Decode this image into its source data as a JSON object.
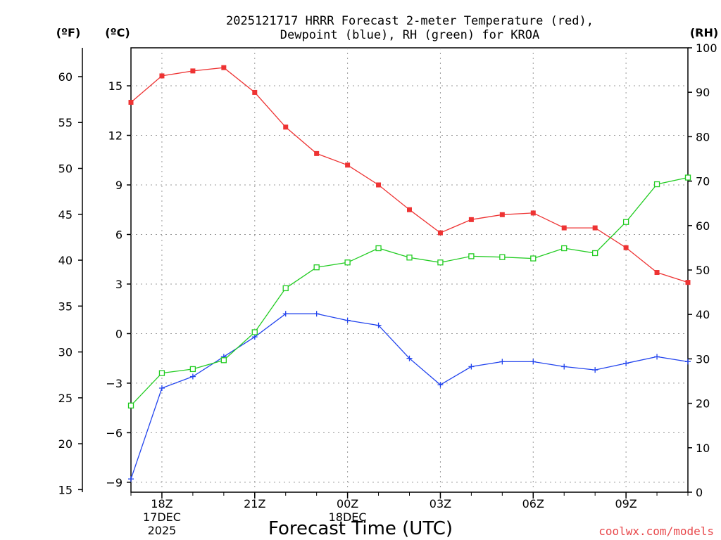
{
  "chart_data": {
    "type": "line",
    "title_line1": "2025121717 HRRR Forecast 2-meter Temperature (red),",
    "title_line2": "Dewpoint (blue), RH (green) for KROA",
    "axis_units": {
      "fahrenheit": "(ºF)",
      "celsius": "(ºC)",
      "rh": "(RH)"
    },
    "xlabel": "Forecast Time (UTC)",
    "credit": "coolwx.com/models",
    "x_hours": [
      17,
      18,
      19,
      20,
      21,
      22,
      23,
      24,
      25,
      26,
      27,
      28,
      29,
      30,
      31,
      32,
      33,
      34,
      35
    ],
    "x_range": [
      17,
      35
    ],
    "x_ticks": [
      {
        "hour": 18,
        "labels": [
          "18Z",
          "17DEC",
          "2025"
        ]
      },
      {
        "hour": 21,
        "labels": [
          "21Z"
        ]
      },
      {
        "hour": 24,
        "labels": [
          "00Z",
          "18DEC"
        ]
      },
      {
        "hour": 27,
        "labels": [
          "03Z"
        ]
      },
      {
        "hour": 30,
        "labels": [
          "06Z"
        ]
      },
      {
        "hour": 33,
        "labels": [
          "09Z"
        ]
      }
    ],
    "celsius_range": [
      -9.6,
      17.3
    ],
    "celsius_ticks": [
      "15",
      "12",
      "9",
      "6",
      "3",
      "0",
      "−3",
      "−6",
      "−9"
    ],
    "celsius_tick_values": [
      15,
      12,
      9,
      6,
      3,
      0,
      -3,
      -6,
      -9
    ],
    "fahrenheit_ticks": [
      "60",
      "55",
      "50",
      "45",
      "40",
      "35",
      "30",
      "25",
      "20",
      "15"
    ],
    "fahrenheit_tick_values": [
      60,
      55,
      50,
      45,
      40,
      35,
      30,
      25,
      20,
      15
    ],
    "rh_range": [
      0,
      100
    ],
    "rh_ticks": [
      "100",
      "90",
      "80",
      "70",
      "60",
      "50",
      "40",
      "30",
      "20",
      "10",
      "0"
    ],
    "rh_tick_values": [
      100,
      90,
      80,
      70,
      60,
      50,
      40,
      30,
      20,
      10,
      0
    ],
    "series": [
      {
        "name": "2-meter Temperature",
        "unit": "C",
        "color": "#ee3333",
        "marker": "filled-square",
        "values": [
          14.0,
          15.6,
          15.9,
          16.1,
          14.6,
          12.5,
          10.9,
          10.2,
          9.0,
          7.5,
          6.1,
          6.9,
          7.2,
          7.3,
          6.4,
          6.4,
          5.2,
          3.7,
          3.1
        ]
      },
      {
        "name": "Dewpoint",
        "unit": "C",
        "color": "#2244ee",
        "marker": "plus",
        "values": [
          -8.8,
          -3.3,
          -2.6,
          -1.4,
          -0.2,
          1.2,
          1.2,
          0.8,
          0.5,
          -1.5,
          -3.1,
          -2.0,
          -1.7,
          -1.7,
          -2.0,
          -2.2,
          -1.8,
          -1.4,
          -1.7
        ]
      },
      {
        "name": "RH",
        "unit": "%",
        "color": "#22cc22",
        "marker": "open-square",
        "values": [
          19.5,
          26.8,
          27.7,
          29.7,
          36.0,
          45.9,
          50.6,
          51.7,
          54.9,
          52.8,
          51.7,
          53.1,
          52.9,
          52.6,
          54.9,
          53.8,
          60.8,
          69.3,
          70.8
        ]
      }
    ]
  }
}
